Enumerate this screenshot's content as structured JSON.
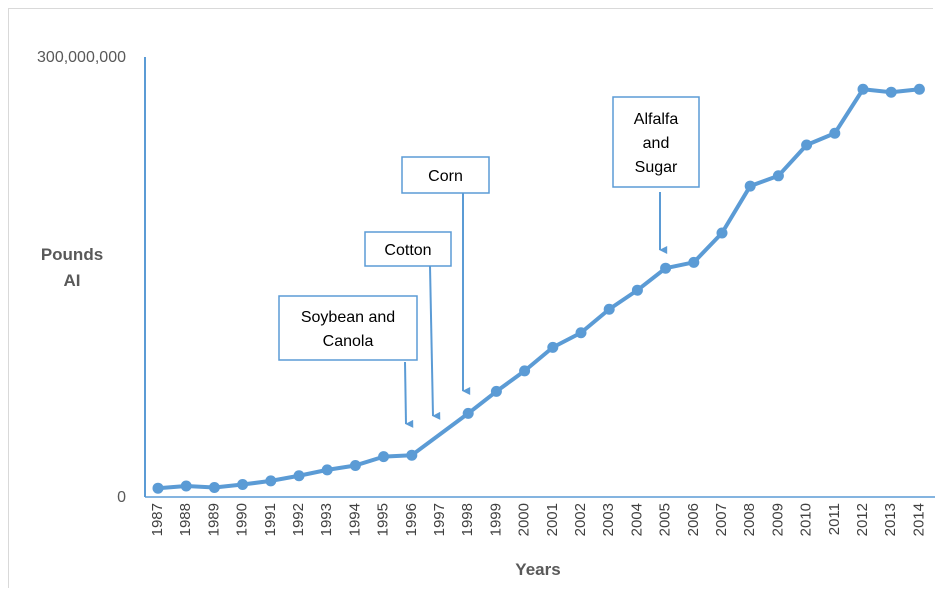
{
  "chart_data": {
    "type": "line",
    "xlabel": "Years",
    "ylabel": [
      "Pounds",
      "AI"
    ],
    "y_tick_labels": [
      "300,000,000",
      "0"
    ],
    "ylim": [
      0,
      300000000
    ],
    "legend": "none",
    "grid": false,
    "colors": {
      "line": "#5b9bd5",
      "arrow": "#5b9bd5",
      "axis": "#5b9bd5",
      "callout_border": "#5b9bd5"
    },
    "categories": [
      "1987",
      "1988",
      "1989",
      "1990",
      "1991",
      "1992",
      "1993",
      "1994",
      "1995",
      "1996",
      "1997",
      "1998",
      "1999",
      "2000",
      "2001",
      "2002",
      "2003",
      "2004",
      "2005",
      "2006",
      "2007",
      "2008",
      "2009",
      "2010",
      "2011",
      "2012",
      "2013",
      "2014"
    ],
    "series": [
      {
        "x": [
          "1987",
          "1988",
          "1989",
          "1990",
          "1991",
          "1992",
          "1993",
          "1994",
          "1995",
          "1996",
          "1998",
          "1999",
          "2000",
          "2001",
          "2002",
          "2003",
          "2004",
          "2005",
          "2006",
          "2007",
          "2008",
          "2009",
          "2010",
          "2011",
          "2012",
          "2013",
          "2014"
        ],
        "values": [
          6000000,
          7500000,
          6500000,
          8500000,
          11000000,
          14500000,
          18500000,
          21500000,
          27500000,
          28500000,
          57000000,
          72000000,
          86000000,
          102000000,
          112000000,
          128000000,
          141000000,
          156000000,
          160000000,
          180000000,
          212000000,
          219000000,
          240000000,
          248000000,
          278000000,
          276000000,
          278000000
        ]
      }
    ],
    "annotations": [
      {
        "lines": [
          "Soybean and",
          "Canola"
        ],
        "arrow_to": "1996"
      },
      {
        "lines": [
          "Cotton"
        ],
        "arrow_to": "1997"
      },
      {
        "lines": [
          "Corn"
        ],
        "arrow_to": "1998"
      },
      {
        "lines": [
          "Alfalfa",
          "and",
          "Sugar"
        ],
        "arrow_to": "2005"
      }
    ]
  }
}
